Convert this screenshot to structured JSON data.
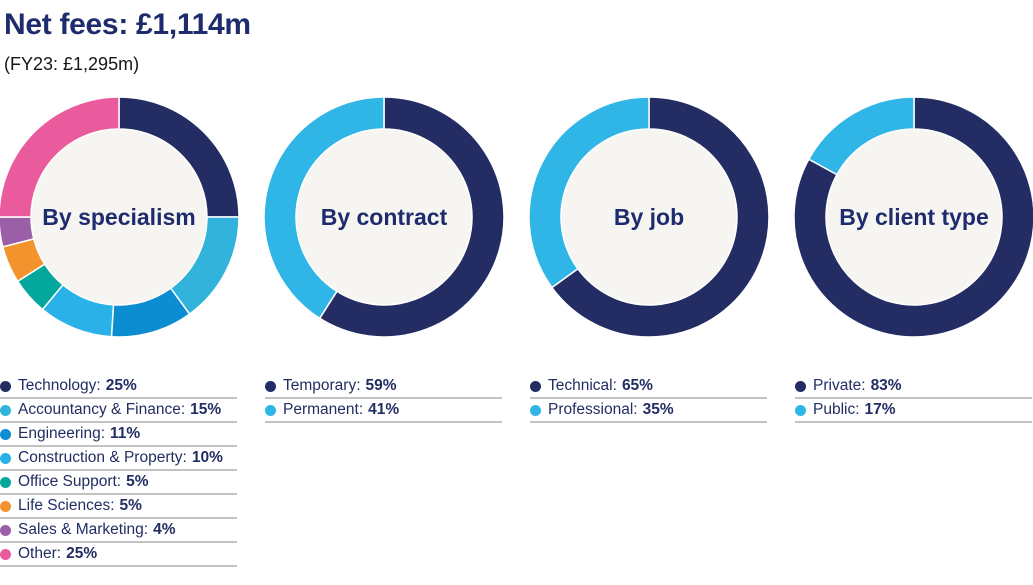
{
  "header": {
    "title": "Net fees: £1,114m",
    "subtitle": "(FY23: £1,295m)"
  },
  "colors": {
    "navy": "#232d63",
    "cyan": "#2fb5e6",
    "title_navy": "#1e2c6e",
    "legend_text": "#222d62",
    "donut_hole": "#f7f5f1",
    "separator_gray": "#c3c3c3"
  },
  "chart_data": [
    {
      "type": "pie",
      "title": "By specialism",
      "layout": {
        "donut": true,
        "start_angle": "top",
        "direction": "clockwise",
        "legend_position": "below"
      },
      "segments": [
        {
          "label": "Technology",
          "value": 25,
          "value_label": "25%",
          "color": "#232d63"
        },
        {
          "label": "Accountancy & Finance",
          "value": 15,
          "value_label": "15%",
          "color": "#31b3dc"
        },
        {
          "label": "Engineering",
          "value": 11,
          "value_label": "11%",
          "color": "#0d8dd1"
        },
        {
          "label": "Construction & Property",
          "value": 10,
          "value_label": "10%",
          "color": "#29b1e8"
        },
        {
          "label": "Office Support",
          "value": 5,
          "value_label": "5%",
          "color": "#03a79b"
        },
        {
          "label": "Life Sciences",
          "value": 5,
          "value_label": "5%",
          "color": "#f2932d"
        },
        {
          "label": "Sales & Marketing",
          "value": 4,
          "value_label": "4%",
          "color": "#9a5fa7"
        },
        {
          "label": "Other",
          "value": 25,
          "value_label": "25%",
          "color": "#ea5b9e"
        }
      ]
    },
    {
      "type": "pie",
      "title": "By contract",
      "layout": {
        "donut": true,
        "start_angle": "top",
        "direction": "clockwise",
        "legend_position": "below"
      },
      "segments": [
        {
          "label": "Temporary",
          "value": 59,
          "value_label": "59%",
          "color": "#232d63"
        },
        {
          "label": "Permanent",
          "value": 41,
          "value_label": "41%",
          "color": "#2fb5e6"
        }
      ]
    },
    {
      "type": "pie",
      "title": "By job",
      "layout": {
        "donut": true,
        "start_angle": "top",
        "direction": "clockwise",
        "legend_position": "below"
      },
      "segments": [
        {
          "label": "Technical",
          "value": 65,
          "value_label": "65%",
          "color": "#232d63"
        },
        {
          "label": "Professional",
          "value": 35,
          "value_label": "35%",
          "color": "#2fb5e6"
        }
      ]
    },
    {
      "type": "pie",
      "title": "By client type",
      "layout": {
        "donut": true,
        "start_angle": "top",
        "direction": "clockwise",
        "legend_position": "below"
      },
      "segments": [
        {
          "label": "Private",
          "value": 83,
          "value_label": "83%",
          "color": "#232d63"
        },
        {
          "label": "Public",
          "value": 17,
          "value_label": "17%",
          "color": "#2fb5e6"
        }
      ]
    }
  ]
}
